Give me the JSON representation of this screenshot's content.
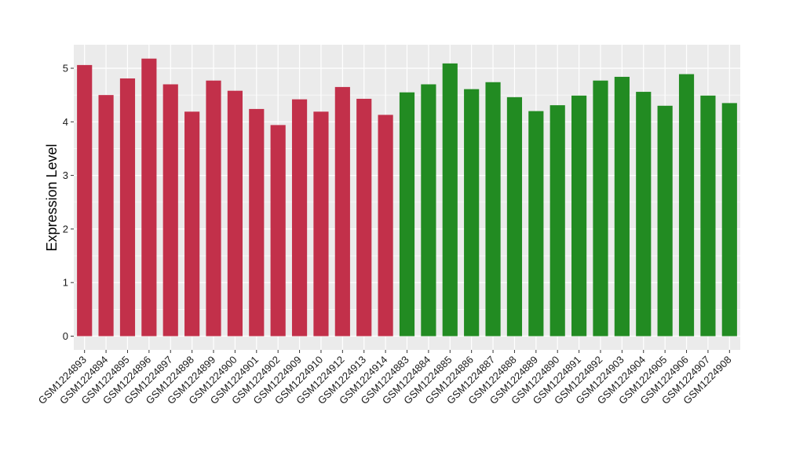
{
  "chart_data": {
    "type": "bar",
    "title": "",
    "xlabel": "",
    "ylabel": "Expression Level",
    "ylim": [
      0,
      5.4
    ],
    "yticks": [
      0,
      1,
      2,
      3,
      4,
      5
    ],
    "grid": true,
    "legend": "none",
    "colors": {
      "group1": "#c2304a",
      "group2": "#228b22",
      "panel": "#ebebeb",
      "grid": "#ffffff"
    },
    "categories": [
      "GSM1224893",
      "GSM1224894",
      "GSM1224895",
      "GSM1224896",
      "GSM1224897",
      "GSM1224898",
      "GSM1224899",
      "GSM1224900",
      "GSM1224901",
      "GSM1224902",
      "GSM1224909",
      "GSM1224910",
      "GSM1224912",
      "GSM1224913",
      "GSM1224914",
      "GSM1224883",
      "GSM1224884",
      "GSM1224885",
      "GSM1224886",
      "GSM1224887",
      "GSM1224888",
      "GSM1224889",
      "GSM1224890",
      "GSM1224891",
      "GSM1224892",
      "GSM1224903",
      "GSM1224904",
      "GSM1224905",
      "GSM1224906",
      "GSM1224907",
      "GSM1224908"
    ],
    "values": [
      5.06,
      4.5,
      4.81,
      5.18,
      4.7,
      4.19,
      4.77,
      4.58,
      4.24,
      3.94,
      4.42,
      4.19,
      4.65,
      4.43,
      4.13,
      4.55,
      4.7,
      5.09,
      4.61,
      4.74,
      4.46,
      4.2,
      4.31,
      4.49,
      4.77,
      4.84,
      4.56,
      4.3,
      4.89,
      4.49,
      4.35
    ],
    "groups": [
      "group1",
      "group1",
      "group1",
      "group1",
      "group1",
      "group1",
      "group1",
      "group1",
      "group1",
      "group1",
      "group1",
      "group1",
      "group1",
      "group1",
      "group1",
      "group2",
      "group2",
      "group2",
      "group2",
      "group2",
      "group2",
      "group2",
      "group2",
      "group2",
      "group2",
      "group2",
      "group2",
      "group2",
      "group2",
      "group2",
      "group2"
    ]
  }
}
